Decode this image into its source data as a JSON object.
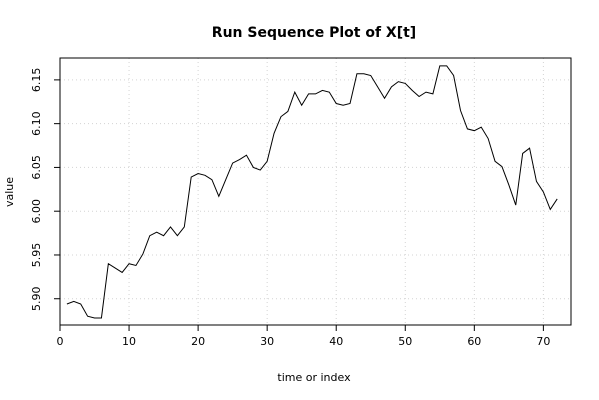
{
  "chart_data": {
    "type": "line",
    "title": "Run Sequence Plot of X[t]",
    "xlabel": "time or index",
    "ylabel": "value",
    "xlim": [
      0,
      74
    ],
    "ylim": [
      5.87,
      6.175
    ],
    "xticks": [
      0,
      10,
      20,
      30,
      40,
      50,
      60,
      70
    ],
    "yticks": [
      5.9,
      5.95,
      6.0,
      6.05,
      6.1,
      6.15
    ],
    "ytick_labels": [
      "5.90",
      "5.95",
      "6.00",
      "6.05",
      "6.10",
      "6.15"
    ],
    "grid": true,
    "x": [
      1,
      2,
      3,
      4,
      5,
      6,
      7,
      8,
      9,
      10,
      11,
      12,
      13,
      14,
      15,
      16,
      17,
      18,
      19,
      20,
      21,
      22,
      23,
      24,
      25,
      26,
      27,
      28,
      29,
      30,
      31,
      32,
      33,
      34,
      35,
      36,
      37,
      38,
      39,
      40,
      41,
      42,
      43,
      44,
      45,
      46,
      47,
      48,
      49,
      50,
      51,
      52,
      53,
      54,
      55,
      56,
      57,
      58,
      59,
      60,
      61,
      62,
      63,
      64,
      65,
      66,
      67,
      68,
      69,
      70,
      71,
      72
    ],
    "y": [
      5.894,
      5.897,
      5.894,
      5.88,
      5.878,
      5.878,
      5.94,
      5.935,
      5.93,
      5.94,
      5.938,
      5.951,
      5.972,
      5.976,
      5.972,
      5.982,
      5.972,
      5.982,
      6.039,
      6.043,
      6.041,
      6.036,
      6.017,
      6.036,
      6.055,
      6.059,
      6.064,
      6.05,
      6.047,
      6.057,
      6.089,
      6.108,
      6.114,
      6.136,
      6.121,
      6.134,
      6.134,
      6.138,
      6.136,
      6.123,
      6.121,
      6.123,
      6.157,
      6.157,
      6.155,
      6.142,
      6.129,
      6.142,
      6.148,
      6.146,
      6.138,
      6.131,
      6.136,
      6.134,
      6.166,
      6.166,
      6.155,
      6.115,
      6.094,
      6.092,
      6.096,
      6.083,
      6.057,
      6.051,
      6.03,
      6.007,
      6.066,
      6.072,
      6.034,
      6.022,
      6.002,
      6.014
    ]
  }
}
